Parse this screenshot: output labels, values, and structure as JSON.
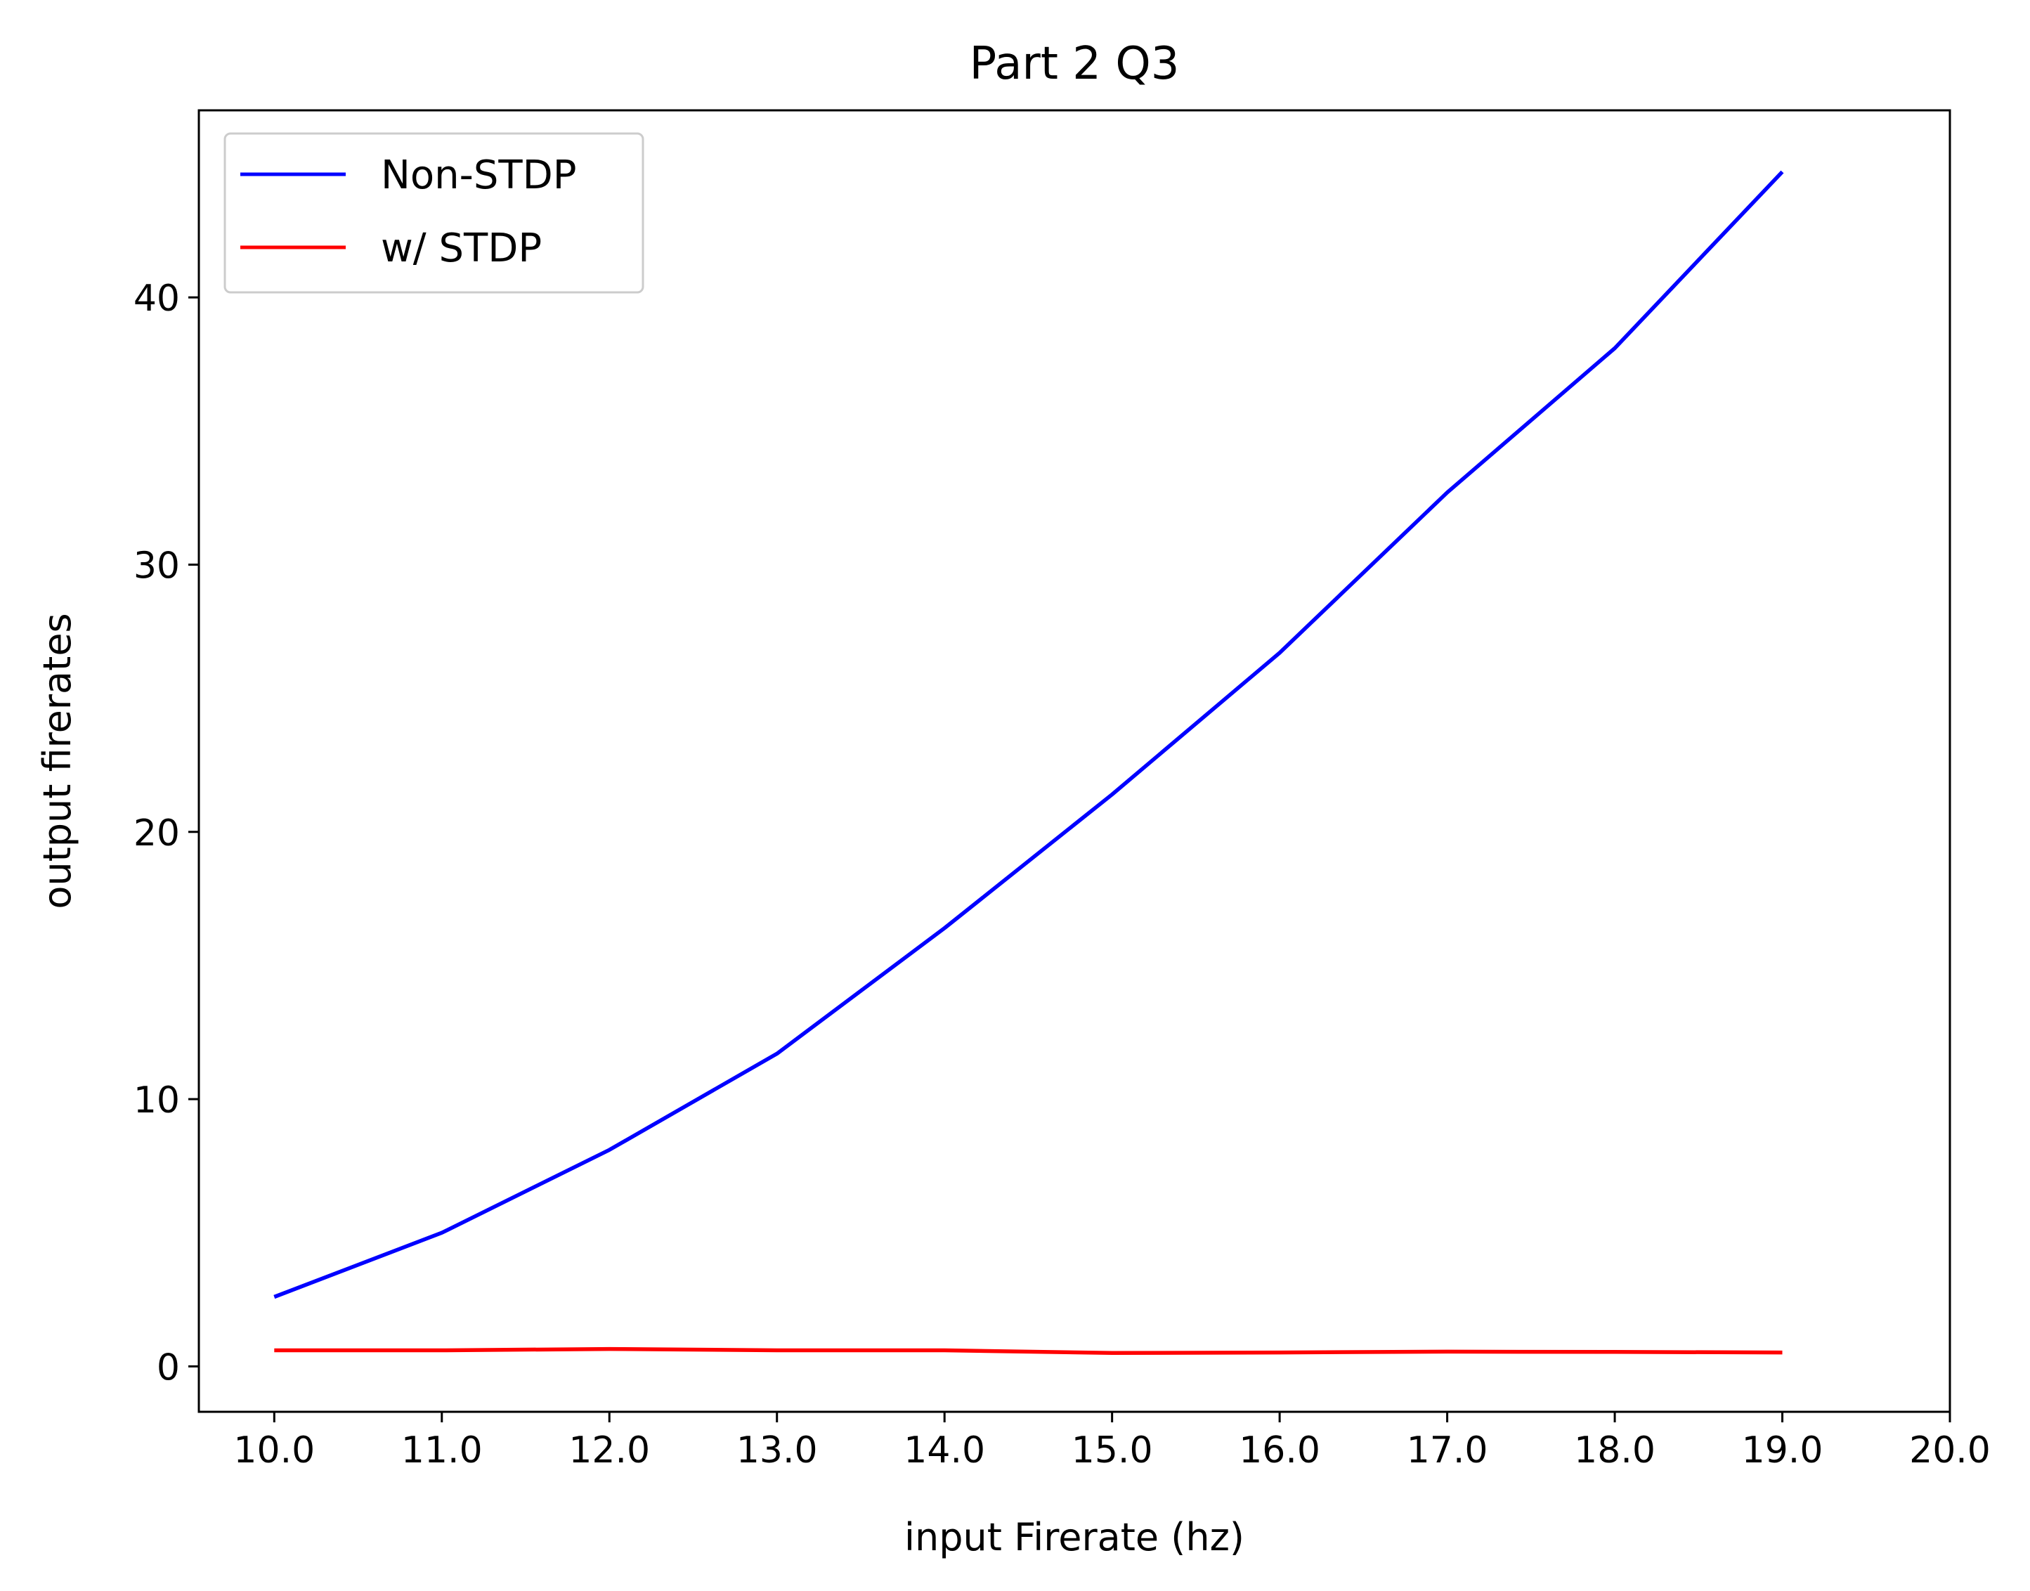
{
  "chart_data": {
    "type": "line",
    "title": "Part 2 Q3",
    "xlabel": "input Firerate (hz)",
    "ylabel": "output firerates",
    "x": [
      10,
      11,
      12,
      13,
      14,
      15,
      16,
      17,
      18,
      19
    ],
    "xticks": [
      "10.0",
      "11.0",
      "12.0",
      "13.0",
      "14.0",
      "15.0",
      "16.0",
      "17.0",
      "18.0",
      "19.0",
      "20.0"
    ],
    "yticks": [
      "0",
      "10",
      "20",
      "30",
      "40"
    ],
    "xlim": [
      9.55,
      20.0
    ],
    "ylim": [
      -1.7,
      47.0
    ],
    "grid": false,
    "legend_position": "upper left",
    "series": [
      {
        "name": "Non-STDP",
        "color": "#0000ff",
        "values": [
          2.6,
          5.0,
          8.1,
          11.7,
          16.4,
          21.4,
          26.7,
          32.7,
          38.1,
          44.7
        ]
      },
      {
        "name": "w/ STDP",
        "color": "#ff0000",
        "values": [
          0.6,
          0.6,
          0.65,
          0.6,
          0.6,
          0.5,
          0.52,
          0.55,
          0.54,
          0.52
        ]
      }
    ]
  }
}
